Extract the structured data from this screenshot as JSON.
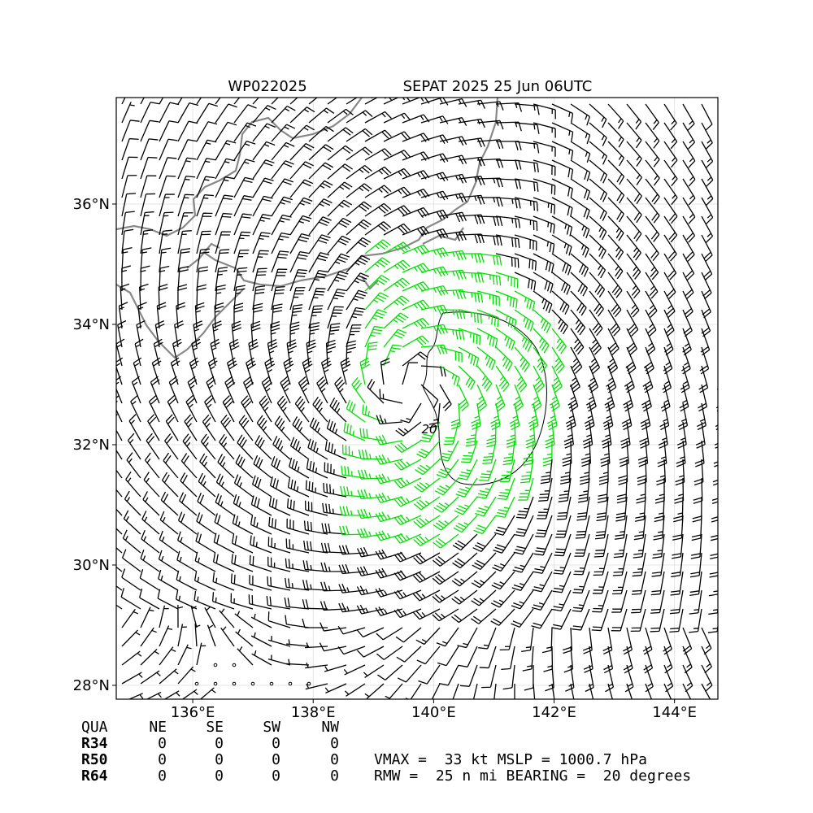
{
  "chart_data": {
    "type": "barb-map",
    "title": "WP022025",
    "subtitle": "SEPAT 2025 25 Jun 06UTC",
    "xlim": [
      134.73,
      144.72
    ],
    "ylim": [
      27.77,
      37.77
    ],
    "xticks": [
      {
        "value": 136,
        "label": "136°E"
      },
      {
        "value": 138,
        "label": "138°E"
      },
      {
        "value": 140,
        "label": "140°E"
      },
      {
        "value": 142,
        "label": "142°E"
      },
      {
        "value": 144,
        "label": "144°E"
      }
    ],
    "yticks": [
      {
        "value": 28,
        "label": "28°N"
      },
      {
        "value": 30,
        "label": "30°N"
      },
      {
        "value": 32,
        "label": "32°N"
      },
      {
        "value": 34,
        "label": "34°N"
      },
      {
        "value": 36,
        "label": "36°N"
      }
    ],
    "grid": true,
    "annotations": [
      "20"
    ]
  },
  "table": {
    "header": [
      "QUA",
      "NE",
      "SE",
      "SW",
      "NW"
    ],
    "rows": [
      [
        "R34",
        0,
        0,
        0,
        0
      ],
      [
        "R50",
        0,
        0,
        0,
        0
      ],
      [
        "R64",
        0,
        0,
        0,
        0
      ]
    ]
  },
  "stats": [
    "VMAX =  33 kt MSLP = 1000.7 hPa",
    "RMW =  25 n mi BEARING =  20 degrees"
  ]
}
